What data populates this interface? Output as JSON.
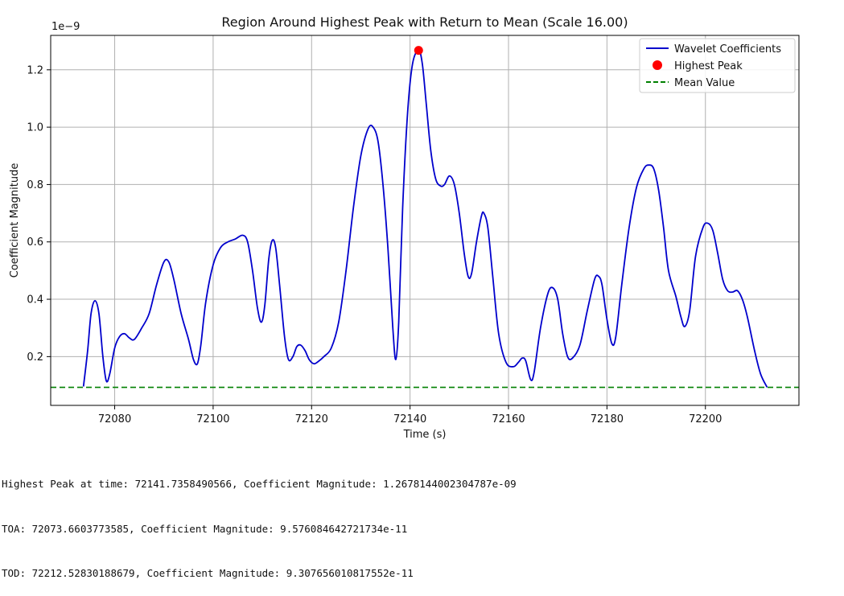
{
  "chart_data": {
    "type": "line",
    "title": "Region Around Highest Peak with Return to Mean (Scale 16.00)",
    "xlabel": "Time (s)",
    "ylabel": "Coefficient Magnitude",
    "y_offset_label": "1e−9",
    "xlim": [
      72067,
      72219
    ],
    "ylim": [
      0.03,
      1.32
    ],
    "x_ticks": [
      72080,
      72100,
      72120,
      72140,
      72160,
      72180,
      72200
    ],
    "y_ticks": [
      0.2,
      0.4,
      0.6,
      0.8,
      1.0,
      1.2
    ],
    "y_tick_labels": [
      "0.2",
      "0.4",
      "0.6",
      "0.8",
      "1.0",
      "1.2"
    ],
    "grid": true,
    "legend_position": "top-right",
    "series": [
      {
        "name": "Wavelet Coefficients",
        "color": "#0000cc",
        "style": "solid",
        "points": [
          [
            72073.66,
            0.096
          ],
          [
            72074.5,
            0.22
          ],
          [
            72075.2,
            0.35
          ],
          [
            72076.0,
            0.395
          ],
          [
            72076.8,
            0.35
          ],
          [
            72077.6,
            0.2
          ],
          [
            72078.3,
            0.115
          ],
          [
            72079.0,
            0.14
          ],
          [
            72080.0,
            0.23
          ],
          [
            72081.0,
            0.27
          ],
          [
            72082.0,
            0.28
          ],
          [
            72083.0,
            0.265
          ],
          [
            72084.0,
            0.26
          ],
          [
            72085.5,
            0.3
          ],
          [
            72087.0,
            0.35
          ],
          [
            72088.5,
            0.45
          ],
          [
            72090.0,
            0.53
          ],
          [
            72091.0,
            0.53
          ],
          [
            72092.0,
            0.47
          ],
          [
            72093.5,
            0.35
          ],
          [
            72095.0,
            0.26
          ],
          [
            72096.0,
            0.19
          ],
          [
            72096.8,
            0.175
          ],
          [
            72097.5,
            0.24
          ],
          [
            72098.5,
            0.39
          ],
          [
            72100.0,
            0.52
          ],
          [
            72101.5,
            0.58
          ],
          [
            72103.0,
            0.6
          ],
          [
            72104.5,
            0.61
          ],
          [
            72106.0,
            0.623
          ],
          [
            72107.0,
            0.6
          ],
          [
            72108.0,
            0.5
          ],
          [
            72109.0,
            0.37
          ],
          [
            72109.8,
            0.32
          ],
          [
            72110.5,
            0.38
          ],
          [
            72111.3,
            0.54
          ],
          [
            72112.0,
            0.605
          ],
          [
            72112.7,
            0.58
          ],
          [
            72113.5,
            0.45
          ],
          [
            72114.5,
            0.27
          ],
          [
            72115.3,
            0.19
          ],
          [
            72116.2,
            0.2
          ],
          [
            72117.0,
            0.235
          ],
          [
            72117.8,
            0.24
          ],
          [
            72118.7,
            0.22
          ],
          [
            72119.5,
            0.19
          ],
          [
            72120.5,
            0.175
          ],
          [
            72121.5,
            0.185
          ],
          [
            72122.5,
            0.2
          ],
          [
            72124.0,
            0.23
          ],
          [
            72125.5,
            0.32
          ],
          [
            72127.0,
            0.5
          ],
          [
            72128.5,
            0.72
          ],
          [
            72130.0,
            0.9
          ],
          [
            72131.5,
            0.995
          ],
          [
            72132.5,
            1.0
          ],
          [
            72133.5,
            0.95
          ],
          [
            72134.5,
            0.8
          ],
          [
            72135.5,
            0.58
          ],
          [
            72136.5,
            0.3
          ],
          [
            72137.1,
            0.19
          ],
          [
            72137.7,
            0.32
          ],
          [
            72138.5,
            0.72
          ],
          [
            72139.5,
            1.05
          ],
          [
            72140.5,
            1.22
          ],
          [
            72141.74,
            1.268
          ],
          [
            72142.5,
            1.22
          ],
          [
            72143.3,
            1.08
          ],
          [
            72144.2,
            0.92
          ],
          [
            72145.2,
            0.82
          ],
          [
            72146.2,
            0.795
          ],
          [
            72147.0,
            0.8
          ],
          [
            72148.0,
            0.83
          ],
          [
            72149.0,
            0.8
          ],
          [
            72150.0,
            0.7
          ],
          [
            72151.0,
            0.56
          ],
          [
            72151.8,
            0.48
          ],
          [
            72152.5,
            0.49
          ],
          [
            72153.5,
            0.6
          ],
          [
            72154.5,
            0.69
          ],
          [
            72155.0,
            0.7
          ],
          [
            72155.8,
            0.65
          ],
          [
            72156.8,
            0.48
          ],
          [
            72158.0,
            0.28
          ],
          [
            72159.5,
            0.18
          ],
          [
            72161.0,
            0.165
          ],
          [
            72162.0,
            0.18
          ],
          [
            72162.8,
            0.195
          ],
          [
            72163.5,
            0.185
          ],
          [
            72164.5,
            0.12
          ],
          [
            72165.2,
            0.145
          ],
          [
            72166.5,
            0.3
          ],
          [
            72168.0,
            0.42
          ],
          [
            72169.0,
            0.44
          ],
          [
            72170.0,
            0.4
          ],
          [
            72171.0,
            0.28
          ],
          [
            72172.0,
            0.2
          ],
          [
            72173.0,
            0.195
          ],
          [
            72174.5,
            0.24
          ],
          [
            72176.0,
            0.36
          ],
          [
            72177.5,
            0.47
          ],
          [
            72178.3,
            0.48
          ],
          [
            72179.0,
            0.45
          ],
          [
            72180.0,
            0.33
          ],
          [
            72181.0,
            0.245
          ],
          [
            72181.8,
            0.27
          ],
          [
            72183.0,
            0.45
          ],
          [
            72184.5,
            0.65
          ],
          [
            72186.0,
            0.79
          ],
          [
            72187.5,
            0.855
          ],
          [
            72188.5,
            0.868
          ],
          [
            72189.5,
            0.855
          ],
          [
            72190.5,
            0.78
          ],
          [
            72191.5,
            0.65
          ],
          [
            72192.5,
            0.5
          ],
          [
            72194.0,
            0.41
          ],
          [
            72195.0,
            0.34
          ],
          [
            72195.8,
            0.305
          ],
          [
            72196.8,
            0.36
          ],
          [
            72198.0,
            0.55
          ],
          [
            72199.5,
            0.65
          ],
          [
            72200.5,
            0.665
          ],
          [
            72201.5,
            0.64
          ],
          [
            72202.5,
            0.56
          ],
          [
            72203.5,
            0.47
          ],
          [
            72204.5,
            0.43
          ],
          [
            72205.5,
            0.425
          ],
          [
            72206.5,
            0.43
          ],
          [
            72207.5,
            0.4
          ],
          [
            72208.5,
            0.34
          ],
          [
            72210.0,
            0.22
          ],
          [
            72211.2,
            0.14
          ],
          [
            72212.53,
            0.093
          ]
        ]
      },
      {
        "name": "Highest Peak",
        "color": "#ff0000",
        "style": "marker",
        "points": [
          [
            72141.7358490566,
            1.2678144002304788
          ]
        ]
      },
      {
        "name": "Mean Value",
        "color": "#008000",
        "style": "dashed",
        "y": 0.093
      }
    ],
    "legend": [
      "Wavelet Coefficients",
      "Highest Peak",
      "Mean Value"
    ]
  },
  "notes": [
    "Highest Peak at time: 72141.7358490566, Coefficient Magnitude: 1.2678144002304787e-09",
    "TOA: 72073.6603773585, Coefficient Magnitude: 9.576084642721734e-11",
    "TOD: 72212.52830188679, Coefficient Magnitude: 9.307656010817552e-11"
  ]
}
